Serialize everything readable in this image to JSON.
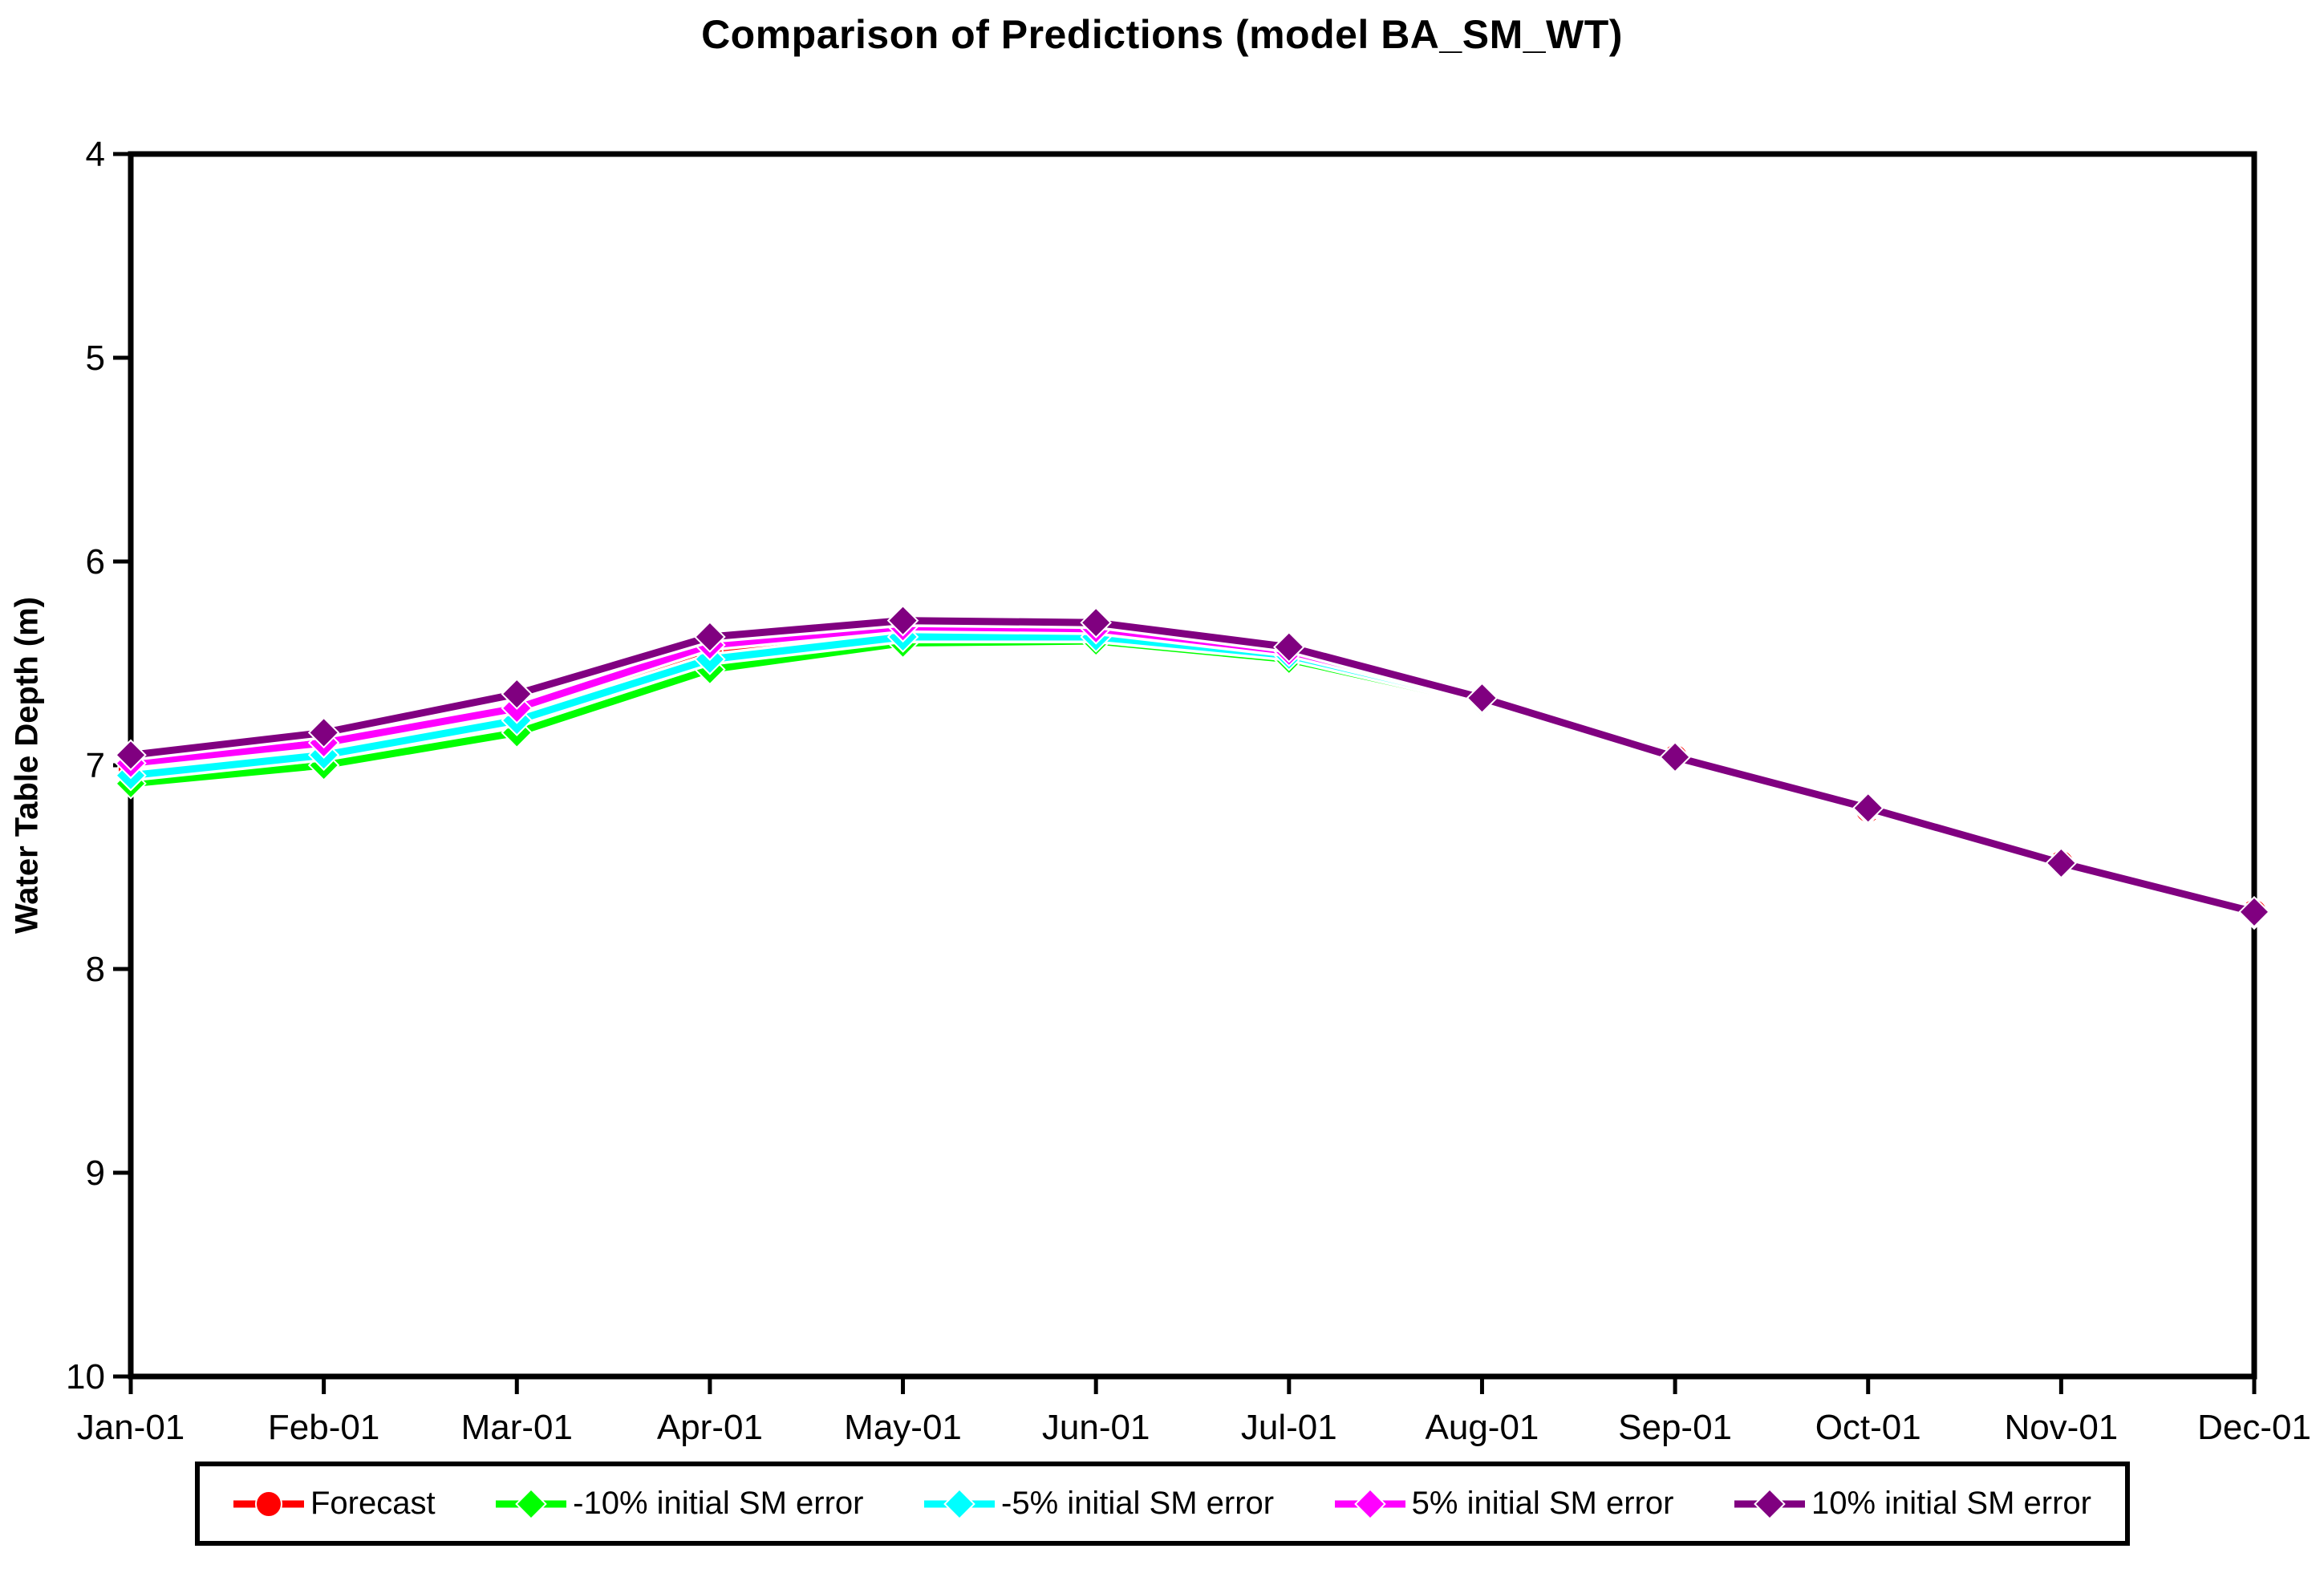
{
  "chart_data": {
    "type": "line",
    "title": "Comparison of Predictions (model BA_SM_WT)",
    "xlabel": "",
    "ylabel": "Water Table Depth (m)",
    "categories": [
      "Jan-01",
      "Feb-01",
      "Mar-01",
      "Apr-01",
      "May-01",
      "Jun-01",
      "Jul-01",
      "Aug-01",
      "Sep-01",
      "Oct-01",
      "Nov-01",
      "Dec-01"
    ],
    "y_axis": {
      "min": 4,
      "max": 10,
      "ticks": [
        "4",
        "5",
        "6",
        "7",
        "8",
        "9",
        "10"
      ],
      "inverted_depth_axis": true
    },
    "grid": false,
    "legend_position": "bottom",
    "series": [
      {
        "name": "Forecast",
        "color": "#FF0000",
        "marker": "circle",
        "values": [
          7.02,
          6.92,
          6.75,
          6.44,
          6.34,
          6.34,
          6.45,
          6.68,
          6.96,
          7.22,
          7.48,
          7.72
        ]
      },
      {
        "name": "-10% initial SM error",
        "color": "#00FF00",
        "marker": "diamond",
        "values": [
          7.09,
          7.0,
          6.84,
          6.53,
          6.4,
          6.39,
          6.48,
          6.69,
          6.97,
          7.22,
          7.49,
          7.73
        ]
      },
      {
        "name": "-5% initial SM error",
        "color": "#00FFFF",
        "marker": "diamond",
        "values": [
          7.05,
          6.95,
          6.78,
          6.48,
          6.37,
          6.37,
          6.46,
          6.68,
          6.97,
          7.22,
          7.48,
          7.72
        ]
      },
      {
        "name": "5% initial SM error",
        "color": "#FF00FF",
        "marker": "diamond",
        "values": [
          6.99,
          6.89,
          6.72,
          6.41,
          6.32,
          6.33,
          6.44,
          6.67,
          6.96,
          7.21,
          7.48,
          7.72
        ]
      },
      {
        "name": "10% initial SM error",
        "color": "#800080",
        "marker": "diamond",
        "values": [
          6.95,
          6.84,
          6.65,
          6.37,
          6.29,
          6.3,
          6.42,
          6.67,
          6.96,
          7.21,
          7.48,
          7.72
        ]
      }
    ],
    "colors": {
      "axis": "#000000",
      "background": "#FFFFFF"
    }
  }
}
